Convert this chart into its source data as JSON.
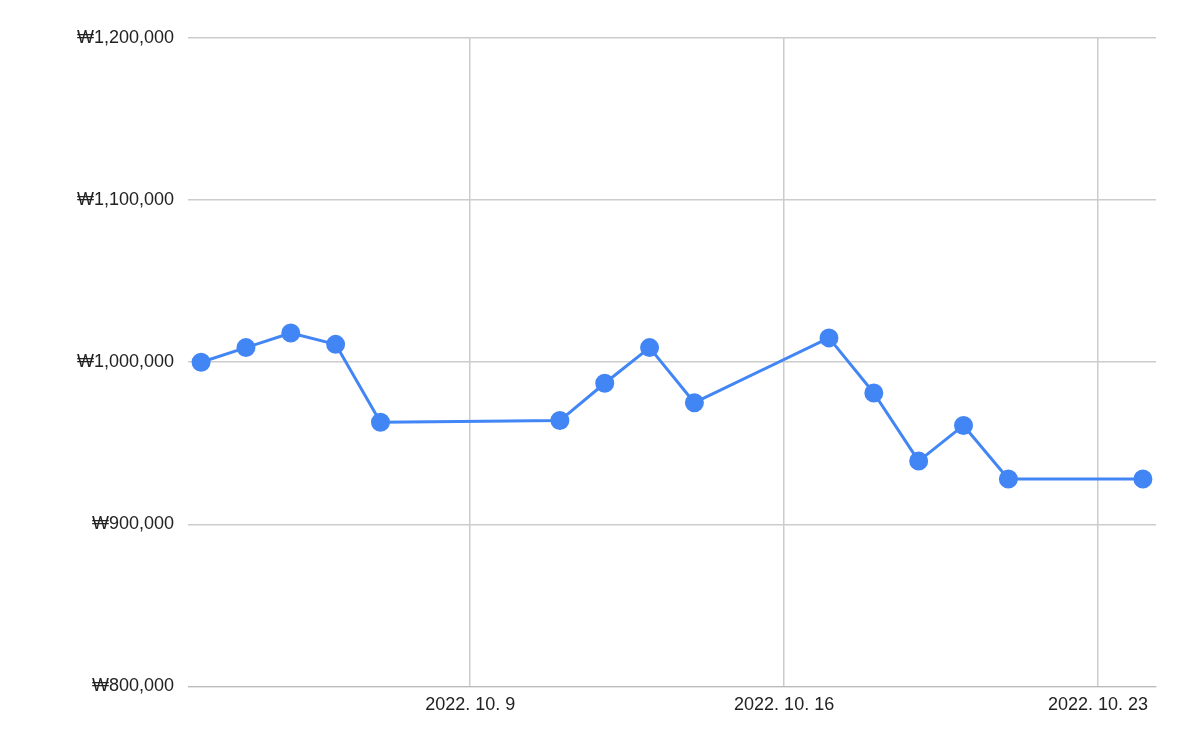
{
  "chart_data": {
    "type": "line",
    "x": [
      "2022-10-03",
      "2022-10-04",
      "2022-10-05",
      "2022-10-06",
      "2022-10-07",
      "2022-10-11",
      "2022-10-12",
      "2022-10-13",
      "2022-10-14",
      "2022-10-17",
      "2022-10-18",
      "2022-10-19",
      "2022-10-20",
      "2022-10-21",
      "2022-10-24"
    ],
    "series": [
      {
        "color": "#4285f4",
        "values": [
          1000000,
          1009000,
          1018000,
          1011000,
          963000,
          964000,
          987000,
          1009000,
          975000,
          1015000,
          981000,
          939000,
          961000,
          928000,
          928000
        ]
      }
    ],
    "xlim": [
      "2022-10-02T17:00",
      "2022-10-24T07:00"
    ],
    "xticks": [
      {
        "value": "2022-10-09",
        "label": "2022. 10. 9"
      },
      {
        "value": "2022-10-16",
        "label": "2022. 10. 16"
      },
      {
        "value": "2022-10-23",
        "label": "2022. 10. 23"
      }
    ],
    "ylim": [
      800000,
      1200000
    ],
    "yticks": [
      {
        "value": 800000,
        "label": "₩800,000"
      },
      {
        "value": 900000,
        "label": "₩900,000"
      },
      {
        "value": 1000000,
        "label": "₩1,000,000"
      },
      {
        "value": 1100000,
        "label": "₩1,100,000"
      },
      {
        "value": 1200000,
        "label": "₩1,200,000"
      }
    ],
    "grid": true,
    "legend": false,
    "marker": "circle",
    "line_style": "solid"
  }
}
